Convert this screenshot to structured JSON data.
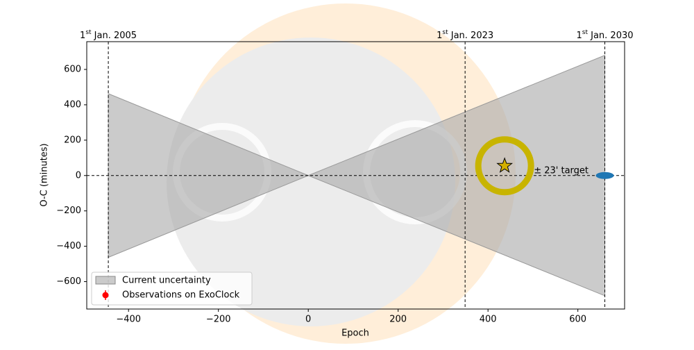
{
  "chart_data": {
    "type": "line",
    "xlabel": "Epoch",
    "ylabel": "O-C (minutes)",
    "xlim": [
      -493,
      704
    ],
    "ylim": [
      -755,
      757
    ],
    "xticks": [
      {
        "value": -400,
        "label": "−400"
      },
      {
        "value": -200,
        "label": "−200"
      },
      0,
      200,
      400,
      600
    ],
    "yticks": [
      {
        "value": -600,
        "label": "−600"
      },
      {
        "value": -400,
        "label": "−400"
      },
      {
        "value": -200,
        "label": "−200"
      },
      0,
      200,
      400,
      600
    ],
    "uncertainty": {
      "name": "Current uncertainty",
      "color": "#a9a9a9",
      "x": [
        -445,
        0,
        660
      ],
      "upper": [
        463,
        0,
        680
      ],
      "lower": [
        -463,
        0,
        -680
      ]
    },
    "observations": {
      "name": "Observations on ExoClock",
      "color": "#ff0000",
      "x": [],
      "values": []
    },
    "vlines": [
      {
        "x": -445,
        "day": "1",
        "suffix": "st",
        "text": "Jan. 2005"
      },
      {
        "x": 349,
        "day": "1",
        "suffix": "st",
        "text": "Jan. 2023"
      },
      {
        "x": 660,
        "day": "1",
        "suffix": "st",
        "text": "Jan. 2030"
      }
    ],
    "hline": 0,
    "target": {
      "x": 437,
      "y": 55,
      "color": "#c8b400"
    },
    "prediction": {
      "x": 660,
      "y": 0,
      "color": "#1f77b4"
    },
    "annotation": {
      "text": "± 23' target",
      "x": 502,
      "y": 27
    },
    "legend": "lower left"
  }
}
